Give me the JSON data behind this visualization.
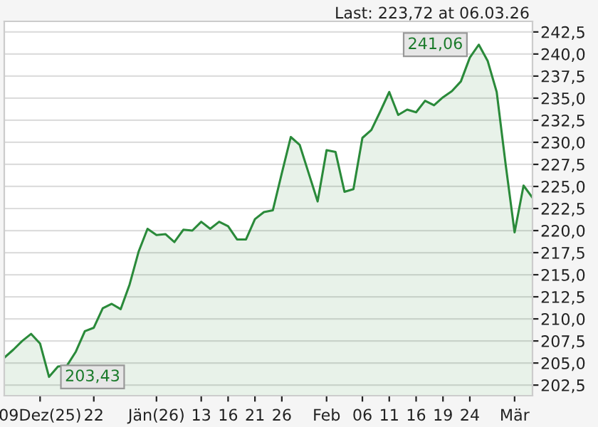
{
  "chart_data": {
    "type": "area",
    "categories": [
      null,
      null,
      null,
      null,
      "09Dez(25)",
      null,
      null,
      null,
      null,
      null,
      "22",
      null,
      null,
      null,
      null,
      null,
      null,
      "Jän(26)",
      null,
      null,
      null,
      null,
      "13",
      null,
      null,
      "16",
      null,
      null,
      "21",
      null,
      null,
      "26",
      null,
      null,
      null,
      null,
      "Feb",
      null,
      null,
      null,
      "06",
      null,
      null,
      "11",
      null,
      null,
      "16",
      null,
      null,
      "19",
      null,
      null,
      "24",
      null,
      null,
      null,
      null,
      "Mär",
      null,
      null
    ],
    "series": [
      {
        "color": "#2a8a3a",
        "values": [
          205.6,
          206.5,
          207.5,
          208.3,
          207.2,
          203.43,
          204.6,
          204.7,
          206.3,
          208.6,
          209.0,
          211.2,
          211.7,
          211.1,
          213.9,
          217.6,
          220.2,
          219.5,
          219.6,
          218.7,
          220.1,
          220.0,
          221.0,
          220.2,
          221.0,
          220.5,
          219.0,
          219.0,
          221.3,
          222.1,
          222.3,
          226.5,
          230.6,
          229.7,
          226.5,
          223.3,
          229.1,
          228.9,
          224.4,
          224.7,
          230.5,
          231.4,
          233.5,
          235.7,
          233.1,
          233.7,
          233.4,
          234.7,
          234.2,
          235.1,
          235.8,
          236.9,
          239.6,
          241.06,
          239.2,
          235.7,
          227.5,
          219.8,
          225.1,
          223.72
        ]
      }
    ],
    "ylim": [
      201.3,
      243.7
    ],
    "yticks": [
      {
        "value": 202.5,
        "label": "202,5"
      },
      {
        "value": 205,
        "label": "205,0"
      },
      {
        "value": 207.5,
        "label": "207,5"
      },
      {
        "value": 210,
        "label": "210,0"
      },
      {
        "value": 212.5,
        "label": "212,5"
      },
      {
        "value": 215,
        "label": "215,0"
      },
      {
        "value": 217.5,
        "label": "217,5"
      },
      {
        "value": 220,
        "label": "220,0"
      },
      {
        "value": 222.5,
        "label": "222,5"
      },
      {
        "value": 225,
        "label": "225,0"
      },
      {
        "value": 227.5,
        "label": "227,5"
      },
      {
        "value": 230,
        "label": "230,0"
      },
      {
        "value": 232.5,
        "label": "232,5"
      },
      {
        "value": 235,
        "label": "235,0"
      },
      {
        "value": 237.5,
        "label": "237,5"
      },
      {
        "value": 240,
        "label": "240,0"
      },
      {
        "value": 242.5,
        "label": "242,5"
      }
    ],
    "grid": "y",
    "legend": false,
    "annotations": [
      "Last: 223,72 at 06.03.26",
      "241,06",
      "203,43"
    ]
  }
}
